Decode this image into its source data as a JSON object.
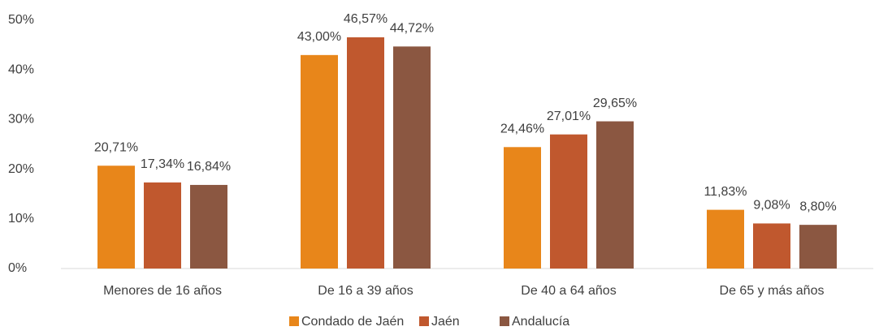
{
  "chart_data": {
    "type": "bar",
    "categories": [
      "Menores de 16 años",
      "De 16 a 39 años",
      "De 40 a 64 años",
      "De 65 y más años"
    ],
    "series": [
      {
        "name": "Condado de Jaén",
        "color": "#e8861a",
        "values": [
          20.71,
          43.0,
          24.46,
          11.83
        ],
        "value_labels": [
          "20,71%",
          "43,00%",
          "24,46%",
          "11,83%"
        ]
      },
      {
        "name": "Jaén",
        "color": "#c0582e",
        "values": [
          17.34,
          46.57,
          27.01,
          9.08
        ],
        "value_labels": [
          "17,34%",
          "46,57%",
          "27,01%",
          "9,08%"
        ]
      },
      {
        "name": "Andalucía",
        "color": "#8b5741",
        "values": [
          16.84,
          44.72,
          29.65,
          8.8
        ],
        "value_labels": [
          "16,84%",
          "44,72%",
          "29,65%",
          "8,80%"
        ]
      }
    ],
    "ylim": [
      0,
      50
    ],
    "yticks": [
      {
        "value": 0,
        "label": "0%"
      },
      {
        "value": 10,
        "label": "10%"
      },
      {
        "value": 20,
        "label": "20%"
      },
      {
        "value": 30,
        "label": "30%"
      },
      {
        "value": 40,
        "label": "40%"
      },
      {
        "value": 50,
        "label": "50%"
      }
    ],
    "grid": false,
    "legend": "bottom"
  }
}
